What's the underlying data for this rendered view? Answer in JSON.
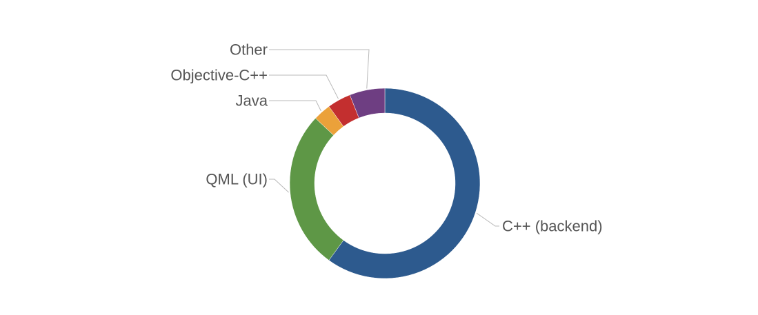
{
  "chart_data": {
    "type": "pie",
    "variant": "donut",
    "legend": "none",
    "labels_outside": true,
    "slices": [
      {
        "label": "C++ (backend)",
        "value": 60,
        "color": "#2d5a8e"
      },
      {
        "label": "QML (UI)",
        "value": 27,
        "color": "#5e9746"
      },
      {
        "label": "Java",
        "value": 3,
        "color": "#eba13a"
      },
      {
        "label": "Objective-C++",
        "value": 4,
        "color": "#c32f2f"
      },
      {
        "label": "Other",
        "value": 6,
        "color": "#6e3e82"
      }
    ]
  }
}
